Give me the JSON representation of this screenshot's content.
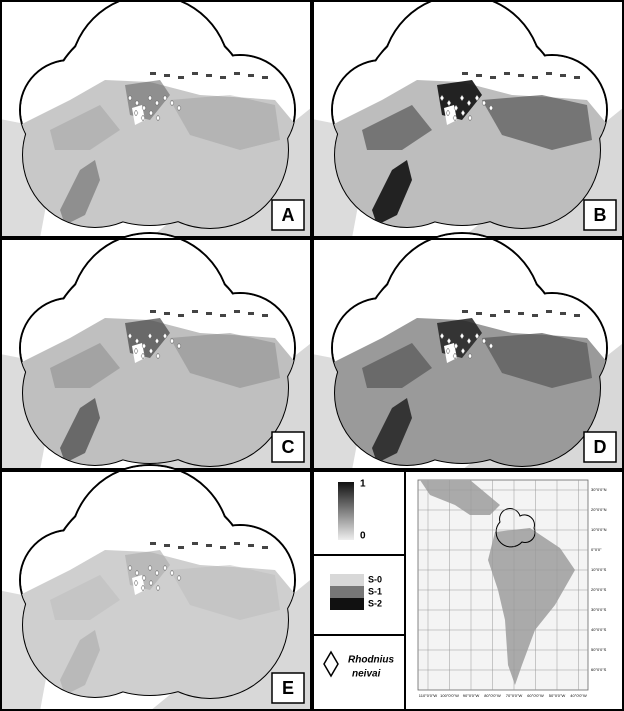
{
  "panels": [
    {
      "label": "A"
    },
    {
      "label": "B"
    },
    {
      "label": "C"
    },
    {
      "label": "D"
    },
    {
      "label": "E"
    }
  ],
  "legend": {
    "scale_max": "1",
    "scale_min": "0",
    "classes": [
      "S-0",
      "S-1",
      "S-2"
    ],
    "species": [
      "Rhodnius",
      "neivai"
    ]
  },
  "inset": {
    "lat_labels": [
      "30°0'0\"N",
      "20°0'0\"N",
      "10°0'0\"N",
      "0°0'0\"",
      "10°0'0\"S",
      "20°0'0\"S",
      "30°0'0\"S",
      "40°0'0\"S",
      "50°0'0\"S",
      "60°0'0\"S"
    ],
    "lon_labels": [
      "110°0'0\"W",
      "100°0'0\"W",
      "90°0'0\"W",
      "80°0'0\"W",
      "70°0'0\"W",
      "60°0'0\"W",
      "50°0'0\"W",
      "40°0'0\"W"
    ]
  }
}
